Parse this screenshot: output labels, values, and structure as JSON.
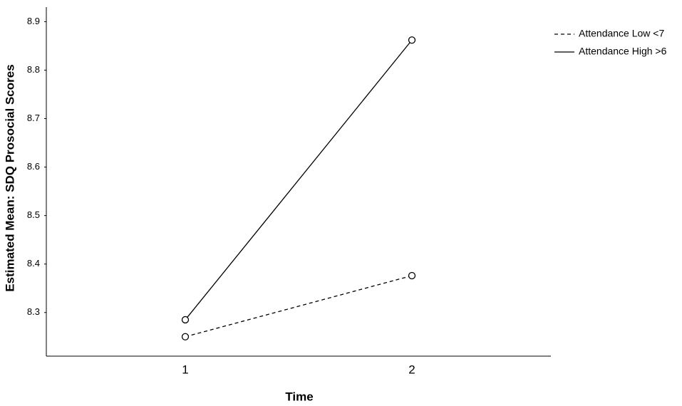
{
  "chart_data": {
    "type": "line",
    "x_label": "Time",
    "y_label": "Estimated Mean: SDQ Prosocial Scores",
    "categories": [
      "1",
      "2"
    ],
    "series": [
      {
        "name": "Attendance Low <7",
        "color": "#000000",
        "dash": "dashed",
        "values": [
          8.25,
          8.376
        ]
      },
      {
        "name": "Attendance High >6",
        "color": "#000000",
        "dash": "solid",
        "values": [
          8.285,
          8.862
        ]
      }
    ],
    "ylim": [
      8.21,
      8.93
    ],
    "yticks": [
      8.3,
      8.4,
      8.5,
      8.6,
      8.7,
      8.8,
      8.9
    ],
    "legend": "right"
  }
}
